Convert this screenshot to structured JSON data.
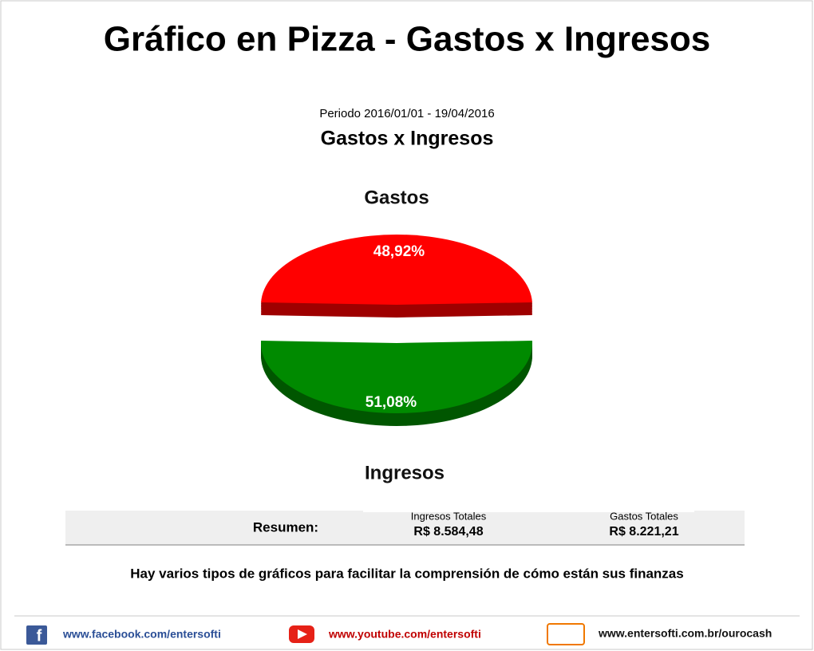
{
  "header": {
    "title": "Gráfico en Pizza - Gastos x Ingresos"
  },
  "chart_data": {
    "type": "pie",
    "subtitle": "Periodo 2016/01/01 - 19/04/2016",
    "title": "Gastos x Ingresos",
    "categories": [
      "Gastos",
      "Ingresos"
    ],
    "values": [
      48.92,
      51.08
    ],
    "value_labels": [
      "48,92%",
      "51,08%"
    ],
    "colors": [
      "#ff0000",
      "#008a00"
    ]
  },
  "summary": {
    "label": "Resumen:",
    "columns": [
      {
        "heading": "Ingresos Totales",
        "value": "R$ 8.584,48"
      },
      {
        "heading": "Gastos Totales",
        "value": "R$ 8.221,21"
      }
    ]
  },
  "caption": "Hay varios tipos de gráficos para facilitar la comprensión de cómo están sus finanzas",
  "footer": {
    "links": [
      "www.facebook.com/entersofti",
      "www.youtube.com/entersofti",
      "www.entersofti.com.br/ourocash"
    ]
  }
}
